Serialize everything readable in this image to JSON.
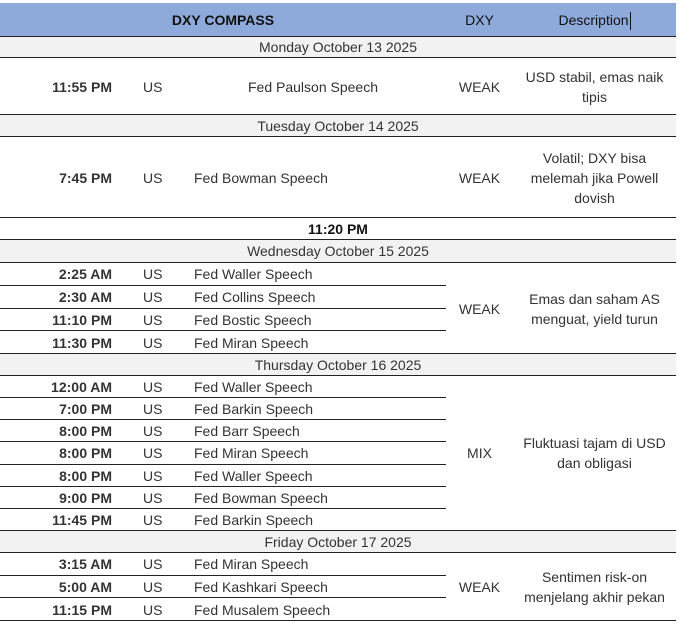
{
  "header": {
    "title": "DXY COMPASS",
    "dxy": "DXY",
    "description": "Description"
  },
  "colors": {
    "header_bg": "#8eaadb",
    "day_bg": "#f2f2f2"
  },
  "days": [
    {
      "date": "Monday October 13 2025",
      "dxy": "WEAK",
      "description": "USD stabil, emas naik tipis",
      "events": [
        {
          "time": "11:55 PM",
          "country": "US",
          "event": "Fed Paulson Speech"
        }
      ]
    },
    {
      "date": "Tuesday October 14 2025",
      "dxy": "WEAK",
      "description": "Volatil; DXY bisa melemah jika Powell dovish",
      "events": [
        {
          "time": "7:45 PM",
          "country": "US",
          "event": "Fed Bowman Speech"
        }
      ]
    },
    {
      "standalone": "11:20 PM"
    },
    {
      "date": "Wednesday October 15 2025",
      "dxy": "WEAK",
      "description": "Emas dan saham AS menguat, yield turun",
      "events": [
        {
          "time": "2:25 AM",
          "country": "US",
          "event": "Fed Waller Speech"
        },
        {
          "time": "2:30 AM",
          "country": "US",
          "event": "Fed Collins Speech"
        },
        {
          "time": "11:10 PM",
          "country": "US",
          "event": "Fed Bostic Speech"
        },
        {
          "time": "11:30 PM",
          "country": "US",
          "event": "Fed Miran Speech"
        }
      ]
    },
    {
      "date": "Thursday October 16 2025",
      "dxy": "MIX",
      "description": "Fluktuasi tajam di USD dan obligasi",
      "events": [
        {
          "time": "12:00 AM",
          "country": "US",
          "event": "Fed Waller Speech"
        },
        {
          "time": "7:00 PM",
          "country": "US",
          "event": "Fed Barkin Speech"
        },
        {
          "time": "8:00 PM",
          "country": "US",
          "event": "Fed Barr Speech"
        },
        {
          "time": "8:00 PM",
          "country": "US",
          "event": "Fed Miran Speech"
        },
        {
          "time": "8:00 PM",
          "country": "US",
          "event": "Fed Waller Speech"
        },
        {
          "time": "9:00 PM",
          "country": "US",
          "event": "Fed Bowman Speech"
        },
        {
          "time": "11:45 PM",
          "country": "US",
          "event": "Fed Barkin Speech"
        }
      ]
    },
    {
      "date": "Friday October 17 2025",
      "dxy": "WEAK",
      "description": "Sentimen risk-on menjelang akhir pekan",
      "events": [
        {
          "time": "3:15 AM",
          "country": "US",
          "event": "Fed Miran Speech"
        },
        {
          "time": "5:00 AM",
          "country": "US",
          "event": "Fed Kashkari Speech"
        },
        {
          "time": "11:15 PM",
          "country": "US",
          "event": "Fed Musalem Speech"
        }
      ]
    }
  ]
}
